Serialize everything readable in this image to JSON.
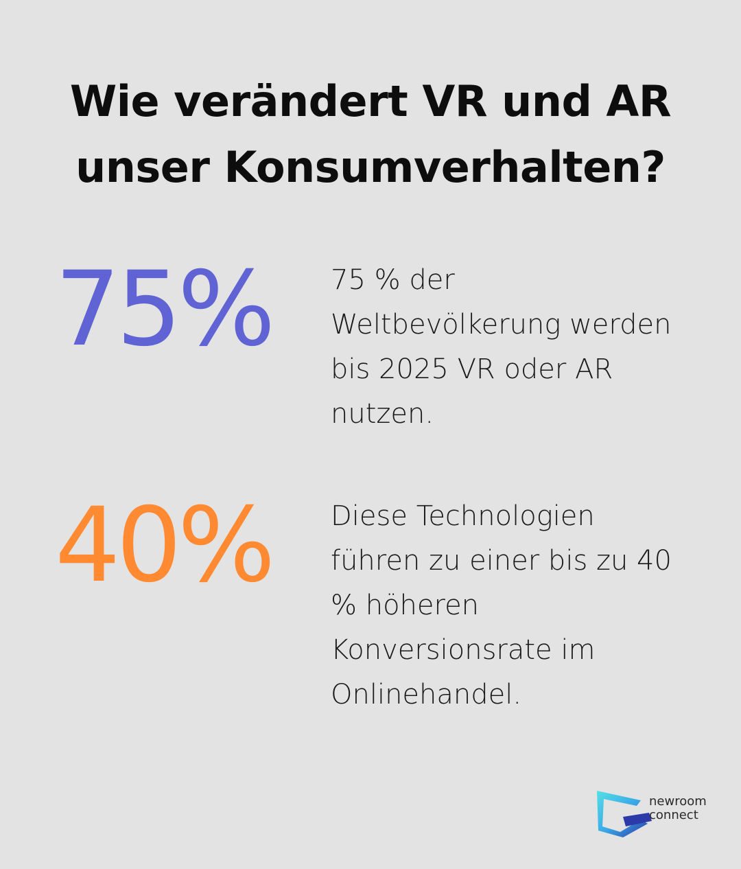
{
  "title": "Wie verändert VR und AR unser Konsumverhalten?",
  "stats": [
    {
      "value": "75%",
      "color": "#5f63d4",
      "text": "75 % der Weltbevölkerung werden bis 2025 VR oder AR nutzen."
    },
    {
      "value": "40%",
      "color": "#ff8a32",
      "text": "Diese Technologien führen zu einer bis zu 40 % höheren Konversionsrate im Onlinehandel."
    }
  ],
  "logo": {
    "line1": "newroom",
    "line2": "connect",
    "colors": {
      "cyan": "#4ad3e0",
      "blue": "#3a6fd8",
      "navy": "#2b3aa8"
    }
  }
}
